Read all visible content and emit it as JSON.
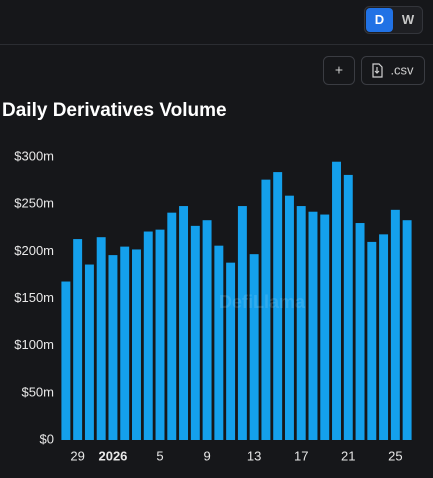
{
  "controls": {
    "interval_buttons": [
      "D",
      "W"
    ],
    "active_interval": "D",
    "add_button": "+",
    "csv_button": ".csv"
  },
  "chart_data": {
    "type": "bar",
    "title": "Daily Derivatives Volume",
    "watermark": "DefiLlama",
    "categories": [
      null,
      "29",
      null,
      null,
      "2026",
      null,
      null,
      null,
      "5",
      null,
      null,
      null,
      "9",
      null,
      null,
      null,
      "13",
      null,
      null,
      null,
      "17",
      null,
      null,
      null,
      "21",
      null,
      null,
      null,
      "25",
      null
    ],
    "values": [
      168,
      213,
      186,
      215,
      196,
      205,
      202,
      221,
      223,
      241,
      248,
      227,
      233,
      206,
      188,
      248,
      197,
      276,
      284,
      259,
      248,
      242,
      239,
      295,
      281,
      230,
      210,
      218,
      244,
      233
    ],
    "color": "#14a0ec",
    "ylim": [
      0,
      300
    ],
    "yticks": [
      {
        "value": 0,
        "label": "$0"
      },
      {
        "value": 50,
        "label": "$50m"
      },
      {
        "value": 100,
        "label": "$100m"
      },
      {
        "value": 150,
        "label": "$150m"
      },
      {
        "value": 200,
        "label": "$200m"
      },
      {
        "value": 250,
        "label": "$250m"
      },
      {
        "value": 300,
        "label": "$300m"
      }
    ],
    "grid": false
  }
}
